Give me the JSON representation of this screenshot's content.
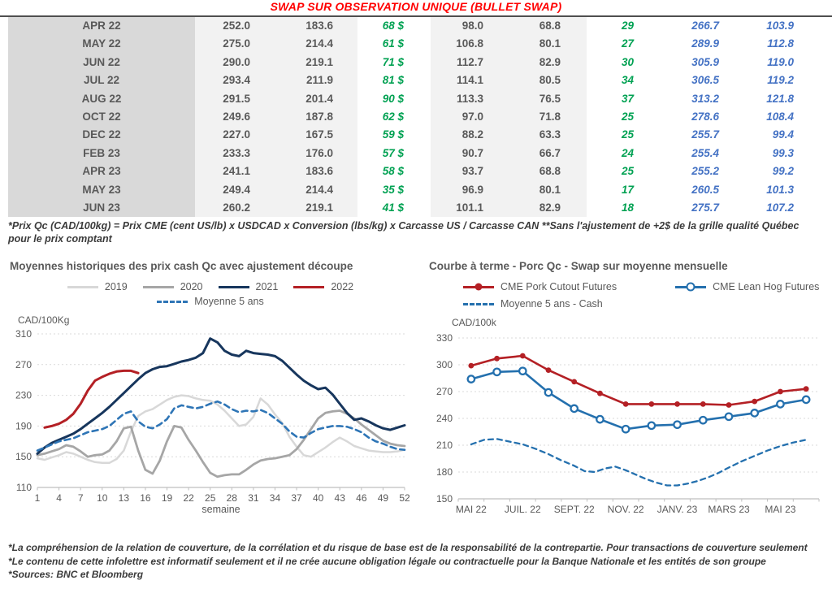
{
  "title": "SWAP SUR OBSERVATION UNIQUE (BULLET SWAP)",
  "footnote": "*Prix Qc (CAD/100kg) = Prix CME (cent US/lb) x USDCAD x Conversion (lbs/kg) x Carcasse US / Carcasse CAN **Sans l'ajustement de +2$ de la grille qualité Québec pour le prix comptant",
  "footer": {
    "lines": [
      "*La compréhension de la relation de couverture, de la corrélation et du risque de base est de la responsabilité de la contrepartie. Pour transactions de couverture seulement",
      "*Le contenu de cette infolettre est informatif seulement et il ne crée aucune obligation légale ou contractuelle pour la Banque Nationale et les entités de son groupe",
      "*Sources: BNC et Bloomberg"
    ]
  },
  "colors": {
    "title_red": "#ff0000",
    "green_value": "#00a152",
    "blue_value": "#4472c4",
    "table_text": "#595959",
    "series_2019": "#d8d8d8",
    "series_2020": "#a6a6a6",
    "series_2021": "#17365d",
    "series_2022": "#b42025",
    "series_blue": "#2470ae",
    "grid": "#d9d9d9",
    "axis": "#bfbfbf"
  },
  "table": {
    "rows": [
      [
        "APR 22",
        "252.0",
        "183.6",
        "68 $",
        "98.0",
        "68.8",
        "29",
        "266.7",
        "103.9"
      ],
      [
        "MAY 22",
        "275.0",
        "214.4",
        "61 $",
        "106.8",
        "80.1",
        "27",
        "289.9",
        "112.8"
      ],
      [
        "JUN 22",
        "290.0",
        "219.1",
        "71 $",
        "112.7",
        "82.9",
        "30",
        "305.9",
        "119.0"
      ],
      [
        "JUL 22",
        "293.4",
        "211.9",
        "81 $",
        "114.1",
        "80.5",
        "34",
        "306.5",
        "119.2"
      ],
      [
        "AUG 22",
        "291.5",
        "201.4",
        "90 $",
        "113.3",
        "76.5",
        "37",
        "313.2",
        "121.8"
      ],
      [
        "OCT 22",
        "249.6",
        "187.8",
        "62 $",
        "97.0",
        "71.8",
        "25",
        "278.6",
        "108.4"
      ],
      [
        "DEC 22",
        "227.0",
        "167.5",
        "59 $",
        "88.2",
        "63.3",
        "25",
        "255.7",
        "99.4"
      ],
      [
        "FEB 23",
        "233.3",
        "176.0",
        "57 $",
        "90.7",
        "66.7",
        "24",
        "255.4",
        "99.3"
      ],
      [
        "APR 23",
        "241.1",
        "183.6",
        "58 $",
        "93.7",
        "68.8",
        "25",
        "255.2",
        "99.2"
      ],
      [
        "MAY 23",
        "249.4",
        "214.4",
        "35 $",
        "96.9",
        "80.1",
        "17",
        "260.5",
        "101.3"
      ],
      [
        "JUN 23",
        "260.2",
        "219.1",
        "41 $",
        "101.1",
        "82.9",
        "18",
        "275.7",
        "107.2"
      ]
    ]
  },
  "chart_data": [
    {
      "type": "line",
      "title": "Moyennes historiques des prix cash Qc avec ajustement découpe",
      "ylabel": "CAD/100Kg",
      "xlabel": "semaine",
      "ylim": [
        110,
        310
      ],
      "yticks": [
        110,
        150,
        190,
        230,
        270,
        310
      ],
      "xlim": [
        1,
        52
      ],
      "xticks": [
        1,
        4,
        7,
        10,
        13,
        16,
        19,
        22,
        25,
        28,
        31,
        34,
        37,
        40,
        43,
        46,
        49,
        52
      ],
      "tick_marks": [
        1,
        4,
        7,
        10,
        13,
        16,
        19,
        22,
        25,
        28,
        31,
        34,
        37,
        40,
        43,
        46,
        49,
        52
      ],
      "grid": "dashed",
      "legend_position": "top",
      "series": [
        {
          "name": "2019",
          "color": "#d8d8d8",
          "width": 2.5,
          "x_start": 1,
          "values": [
            148,
            146,
            149,
            152,
            156,
            154,
            150,
            146,
            143,
            142,
            142,
            147,
            158,
            183,
            203,
            209,
            212,
            218,
            224,
            228,
            230,
            229,
            226,
            224,
            223,
            218,
            210,
            200,
            190,
            192,
            202,
            226,
            218,
            205,
            194,
            176,
            163,
            152,
            150,
            156,
            162,
            169,
            175,
            170,
            164,
            161,
            158,
            157,
            156,
            156,
            157,
            159
          ]
        },
        {
          "name": "2020",
          "color": "#a6a6a6",
          "width": 2.8,
          "x_start": 1,
          "values": [
            152,
            154,
            157,
            160,
            165,
            163,
            157,
            150,
            152,
            153,
            158,
            170,
            187,
            189,
            158,
            133,
            128,
            145,
            170,
            190,
            188,
            172,
            158,
            143,
            129,
            124,
            126,
            127,
            127,
            133,
            140,
            145,
            147,
            148,
            150,
            152,
            160,
            172,
            186,
            200,
            207,
            209,
            210,
            206,
            200,
            192,
            185,
            178,
            171,
            167,
            165,
            164
          ]
        },
        {
          "name": "2021",
          "color": "#17365d",
          "width": 3,
          "x_start": 1,
          "values": [
            154,
            162,
            168,
            172,
            176,
            180,
            186,
            193,
            200,
            207,
            215,
            224,
            233,
            242,
            251,
            259,
            264,
            267,
            268,
            271,
            274,
            276,
            279,
            285,
            304,
            299,
            288,
            283,
            281,
            288,
            285,
            284,
            283,
            281,
            275,
            266,
            257,
            249,
            243,
            238,
            240,
            231,
            219,
            207,
            198,
            200,
            196,
            191,
            187,
            185,
            188,
            191
          ]
        },
        {
          "name": "2022",
          "color": "#b42025",
          "width": 3,
          "x_start": 2,
          "values": [
            188,
            190,
            193,
            198,
            206,
            219,
            236,
            249,
            254,
            258,
            261,
            262,
            262,
            259
          ]
        },
        {
          "name": "Moyenne 5 ans",
          "color": "#2e75b6",
          "width": 2.6,
          "dash": [
            7,
            5
          ],
          "x_start": 1,
          "values": [
            158,
            162,
            166,
            170,
            172,
            174,
            178,
            182,
            184,
            186,
            190,
            198,
            206,
            209,
            196,
            189,
            187,
            192,
            199,
            213,
            217,
            215,
            213,
            215,
            219,
            222,
            218,
            212,
            208,
            210,
            209,
            211,
            207,
            200,
            193,
            183,
            176,
            175,
            181,
            186,
            188,
            190,
            190,
            189,
            186,
            182,
            175,
            170,
            167,
            163,
            160,
            159
          ]
        }
      ]
    },
    {
      "type": "line",
      "title": "Courbe à terme - Porc Qc - Swap sur moyenne mensuelle",
      "ylabel": "CAD/100k",
      "xlabel": "",
      "ylim": [
        150,
        330
      ],
      "yticks": [
        150,
        180,
        210,
        240,
        270,
        300,
        330
      ],
      "xlim": [
        -0.5,
        13.5
      ],
      "xticks": [
        {
          "v": 0,
          "label": "MAI 22"
        },
        {
          "v": 2,
          "label": "JUIL. 22"
        },
        {
          "v": 4,
          "label": "SEPT. 22"
        },
        {
          "v": 6,
          "label": "NOV. 22"
        },
        {
          "v": 8,
          "label": "JANV. 23"
        },
        {
          "v": 10,
          "label": "MARS 23"
        },
        {
          "v": 12,
          "label": "MAI 23"
        }
      ],
      "tick_marks": [
        -0.5,
        0.5,
        1.5,
        2.5,
        3.5,
        4.5,
        5.5,
        6.5,
        7.5,
        8.5,
        9.5,
        10.5,
        11.5,
        12.5,
        13.5
      ],
      "grid": "dashed",
      "legend_position": "top",
      "series": [
        {
          "name": "CME Pork Cutout Futures",
          "color": "#b42025",
          "width": 2.6,
          "marker": "filled",
          "x_start": 0,
          "values": [
            299,
            307,
            310,
            294,
            281,
            268,
            256,
            256,
            256,
            256,
            255,
            259,
            270,
            273
          ]
        },
        {
          "name": "CME Lean Hog Futures",
          "color": "#2470ae",
          "width": 2.6,
          "marker": "open",
          "x_start": 0,
          "values": [
            284,
            292,
            293,
            269,
            251,
            239,
            228,
            232,
            233,
            238,
            242,
            246,
            256,
            261
          ]
        },
        {
          "name": "Moyenne 5 ans - Cash",
          "color": "#2470ae",
          "width": 2.3,
          "dash": [
            6,
            5
          ],
          "x": [
            0,
            0.5,
            1,
            1.5,
            2,
            2.5,
            3,
            3.5,
            4,
            4.4,
            4.8,
            5.2,
            5.6,
            6,
            6.4,
            6.8,
            7.2,
            7.6,
            8,
            8.4,
            8.8,
            9.2,
            9.6,
            10,
            10.5,
            11,
            11.5,
            12,
            12.5,
            13
          ],
          "values": [
            211,
            216,
            217,
            214,
            211,
            206,
            200,
            193,
            187,
            181,
            180,
            184,
            186,
            182,
            177,
            172,
            168,
            165,
            165,
            167,
            170,
            174,
            179,
            185,
            192,
            198,
            204,
            209,
            213,
            216
          ]
        }
      ]
    }
  ]
}
